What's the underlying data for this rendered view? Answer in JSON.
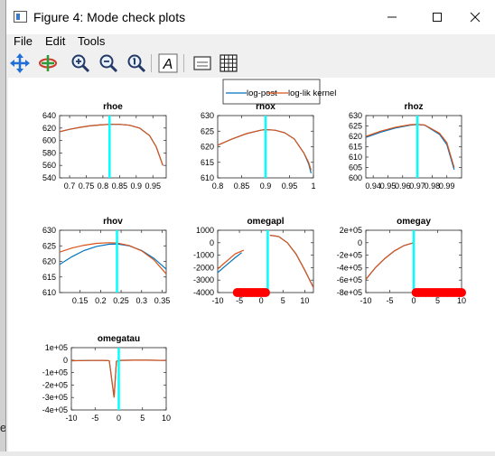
{
  "window": {
    "title": "Figure 4: Mode check plots"
  },
  "menu": {
    "file": "File",
    "edit": "Edit",
    "tools": "Tools"
  },
  "toolbar": {
    "icons": [
      "pan-icon",
      "rotate-icon",
      "zoom-in-icon",
      "zoom-out-icon",
      "zoom-reset-icon",
      "text-icon",
      "insert-legend-icon",
      "grid-icon"
    ]
  },
  "desktop": {
    "edge_char": "e"
  },
  "legend": {
    "entries": [
      "log-post",
      "log-lik kernel"
    ]
  },
  "colors": {
    "log_post": "#0072bd",
    "log_lik": "#d95319",
    "mode_line": "#00ffff",
    "marker": "#ff0000"
  },
  "chart_data": [
    {
      "type": "line",
      "title": "rhoe",
      "xlim": [
        0.67,
        0.99
      ],
      "ylim": [
        540,
        640
      ],
      "xticks": [
        0.7,
        0.75,
        0.8,
        0.85,
        0.9,
        0.95
      ],
      "xticklabels": [
        "0.7",
        "0.75",
        "0.8",
        "0.85",
        "0.9",
        "0.95"
      ],
      "yticks": [
        540,
        560,
        580,
        600,
        620,
        640
      ],
      "yticklabels": [
        "540",
        "560",
        "580",
        "600",
        "620",
        "640"
      ],
      "mode": 0.82,
      "series": [
        {
          "name": "log-post",
          "x": [
            0.67,
            0.7,
            0.73,
            0.76,
            0.79,
            0.82,
            0.85,
            0.88,
            0.91,
            0.94,
            0.96,
            0.98
          ],
          "y": [
            614,
            618,
            621,
            623.5,
            625,
            626,
            626,
            624.5,
            620,
            608,
            590,
            560
          ]
        },
        {
          "name": "log-lik kernel",
          "x": [
            0.67,
            0.7,
            0.73,
            0.76,
            0.79,
            0.82,
            0.85,
            0.88,
            0.91,
            0.94,
            0.96,
            0.98
          ],
          "y": [
            614,
            618,
            621,
            623.5,
            625,
            626,
            626,
            624.5,
            620,
            608,
            590,
            560
          ]
        }
      ]
    },
    {
      "type": "line",
      "title": "rhox",
      "xlim": [
        0.8,
        1.0
      ],
      "ylim": [
        610,
        630
      ],
      "xticks": [
        0.8,
        0.85,
        0.9,
        0.95,
        1.0
      ],
      "xticklabels": [
        "0.8",
        "0.85",
        "0.9",
        "0.95",
        "1"
      ],
      "yticks": [
        610,
        615,
        620,
        625,
        630
      ],
      "yticklabels": [
        "610",
        "615",
        "620",
        "625",
        "630"
      ],
      "mode": 0.9,
      "series": [
        {
          "name": "log-post",
          "x": [
            0.8,
            0.83,
            0.86,
            0.89,
            0.9,
            0.92,
            0.94,
            0.96,
            0.98,
            0.99,
            0.995
          ],
          "y": [
            620.5,
            622.5,
            624.2,
            625.3,
            625.5,
            625.3,
            624.5,
            622.5,
            618,
            614.5,
            611.5
          ]
        },
        {
          "name": "log-lik kernel",
          "x": [
            0.8,
            0.83,
            0.86,
            0.89,
            0.9,
            0.92,
            0.94,
            0.96,
            0.98,
            0.99,
            0.995
          ],
          "y": [
            620.5,
            622.5,
            624.2,
            625.3,
            625.5,
            625.3,
            624.5,
            622.5,
            618,
            615,
            612.5
          ]
        }
      ]
    },
    {
      "type": "line",
      "title": "rhoz",
      "xlim": [
        0.935,
        1.0
      ],
      "ylim": [
        600,
        630
      ],
      "xticks": [
        0.94,
        0.95,
        0.96,
        0.97,
        0.98,
        0.99
      ],
      "xticklabels": [
        "0.94",
        "0.95",
        "0.96",
        "0.97",
        "0.98",
        "0.99"
      ],
      "yticks": [
        600,
        605,
        610,
        615,
        620,
        625,
        630
      ],
      "yticklabels": [
        "600",
        "605",
        "610",
        "615",
        "620",
        "625",
        "630"
      ],
      "mode": 0.97,
      "series": [
        {
          "name": "log-post",
          "x": [
            0.935,
            0.945,
            0.955,
            0.965,
            0.97,
            0.975,
            0.985,
            0.99,
            0.995
          ],
          "y": [
            619.5,
            622,
            624,
            625.4,
            625.7,
            625.4,
            621,
            616,
            604
          ]
        },
        {
          "name": "log-lik kernel",
          "x": [
            0.935,
            0.945,
            0.955,
            0.965,
            0.97,
            0.975,
            0.985,
            0.99,
            0.995
          ],
          "y": [
            620,
            622.5,
            624.4,
            625.6,
            625.8,
            625.5,
            621.5,
            617,
            605
          ]
        }
      ]
    },
    {
      "type": "line",
      "title": "rhov",
      "xlim": [
        0.1,
        0.36
      ],
      "ylim": [
        610,
        630
      ],
      "xticks": [
        0.15,
        0.2,
        0.25,
        0.3,
        0.35
      ],
      "xticklabels": [
        "0.15",
        "0.2",
        "0.25",
        "0.3",
        "0.35"
      ],
      "yticks": [
        610,
        615,
        620,
        625,
        630
      ],
      "yticklabels": [
        "610",
        "615",
        "620",
        "625",
        "630"
      ],
      "mode": 0.24,
      "series": [
        {
          "name": "log-post",
          "x": [
            0.1,
            0.13,
            0.16,
            0.19,
            0.22,
            0.24,
            0.27,
            0.3,
            0.33,
            0.36
          ],
          "y": [
            619,
            621.5,
            623.5,
            624.8,
            625.5,
            625.6,
            625,
            623.5,
            621,
            617.5
          ]
        },
        {
          "name": "log-lik kernel",
          "x": [
            0.1,
            0.13,
            0.16,
            0.19,
            0.22,
            0.24,
            0.27,
            0.3,
            0.33,
            0.36
          ],
          "y": [
            623,
            624.3,
            625.2,
            625.8,
            626,
            625.9,
            625.1,
            623.4,
            620.5,
            616
          ]
        }
      ]
    },
    {
      "type": "line",
      "title": "omegapl",
      "xlim": [
        -10,
        12
      ],
      "ylim": [
        -4000,
        1000
      ],
      "xticks": [
        -10,
        -5,
        0,
        5,
        10
      ],
      "xticklabels": [
        "-10",
        "-5",
        "0",
        "5",
        "10"
      ],
      "yticks": [
        -4000,
        -3000,
        -2000,
        -1000,
        0,
        1000
      ],
      "yticklabels": [
        "-4000",
        "-3000",
        "-2000",
        "-1000",
        "0",
        "1000"
      ],
      "mode": 1.5,
      "series": [
        {
          "name": "log-post",
          "x": [
            -10,
            -8,
            -6,
            -4.5,
            null,
            2,
            4,
            6,
            8,
            10,
            12
          ],
          "y": [
            -2400,
            -1800,
            -1200,
            -800,
            null,
            600,
            500,
            0,
            -900,
            -2200,
            -3600
          ]
        },
        {
          "name": "log-lik kernel",
          "x": [
            -10,
            -8,
            -6,
            -4,
            null,
            2,
            4,
            6,
            8,
            10,
            12
          ],
          "y": [
            -2100,
            -1500,
            -900,
            -600,
            null,
            600,
            500,
            0,
            -900,
            -2200,
            -3600
          ]
        }
      ],
      "markers": {
        "x": [
          -5.5,
          -5,
          -4.5,
          -4,
          -3.5,
          -3,
          -2.5,
          -2,
          -1.5,
          -1,
          -0.5,
          0,
          0.5,
          1
        ],
        "y": -4000
      }
    },
    {
      "type": "line",
      "title": "omegay",
      "xlim": [
        -10,
        10
      ],
      "ylim": [
        -800000,
        200000
      ],
      "xticks": [
        -10,
        -5,
        0,
        5,
        10
      ],
      "xticklabels": [
        "-10",
        "-5",
        "0",
        "5",
        "10"
      ],
      "yticks": [
        -800000,
        -600000,
        -400000,
        -200000,
        0,
        200000
      ],
      "yticklabels": [
        "-8e+05",
        "-6e+05",
        "-4e+05",
        "-2e+05",
        "0",
        "2e+05"
      ],
      "mode": 0,
      "series": [
        {
          "name": "log-post",
          "x": [
            -10,
            -8,
            -6,
            -4,
            -2,
            0
          ],
          "y": [
            -590000,
            -400000,
            -250000,
            -130000,
            -45000,
            0
          ]
        },
        {
          "name": "log-lik kernel",
          "x": [
            -10,
            -8,
            -6,
            -4,
            -2,
            0
          ],
          "y": [
            -590000,
            -400000,
            -250000,
            -130000,
            -45000,
            0
          ]
        }
      ],
      "markers": {
        "x": [
          0.5,
          1,
          1.5,
          2,
          2.5,
          3,
          3.5,
          4,
          4.5,
          5,
          5.5,
          6,
          6.5,
          7,
          7.5,
          8,
          8.5,
          9,
          9.5,
          10
        ],
        "y": -800000
      }
    },
    {
      "type": "line",
      "title": "omegatau",
      "xlim": [
        -10,
        10
      ],
      "ylim": [
        -400000,
        100000
      ],
      "xticks": [
        -10,
        -5,
        0,
        5,
        10
      ],
      "xticklabels": [
        "-10",
        "-5",
        "0",
        "5",
        "10"
      ],
      "yticks": [
        -400000,
        -300000,
        -200000,
        -100000,
        0,
        100000
      ],
      "yticklabels": [
        "-4e+05",
        "-3e+05",
        "-2e+05",
        "-1e+05",
        "0",
        "1e+05"
      ],
      "mode": 0,
      "series": [
        {
          "name": "log-post",
          "x": [
            -10,
            -6,
            -3,
            -2,
            -1.5,
            -1,
            -0.5,
            0,
            3,
            6,
            10
          ],
          "y": [
            -5000,
            -3000,
            -2000,
            -5000,
            -150000,
            -300000,
            -10000,
            -2000,
            -1000,
            -1000,
            -3000
          ]
        },
        {
          "name": "log-lik kernel",
          "x": [
            -10,
            -6,
            -3,
            -2,
            -1.5,
            -1,
            -0.5,
            0,
            3,
            6,
            10
          ],
          "y": [
            -5000,
            -3000,
            -2000,
            -5000,
            -150000,
            -300000,
            -10000,
            -2000,
            -1000,
            -1000,
            -3000
          ]
        }
      ]
    }
  ]
}
